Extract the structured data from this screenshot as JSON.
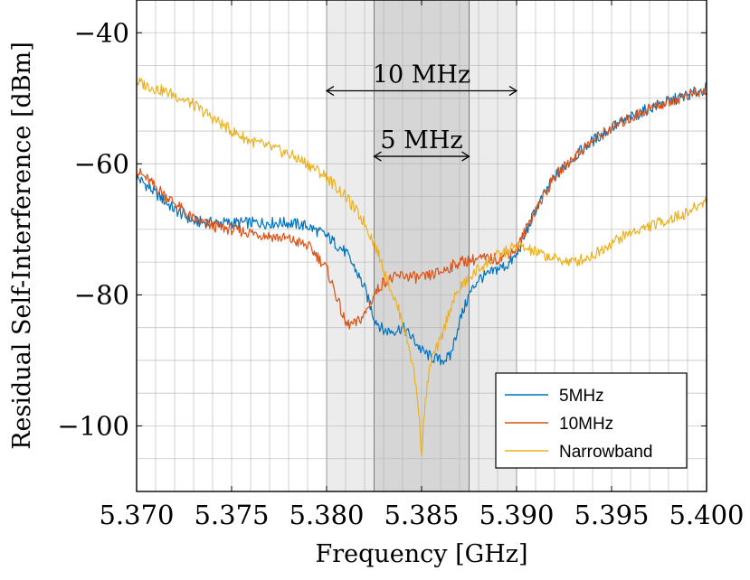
{
  "chart_data": {
    "type": "line",
    "xlabel": "Frequency [GHz]",
    "ylabel": "Residual Self-Interference [dBm]",
    "xlim": [
      5.37,
      5.4
    ],
    "ylim": [
      -110,
      -35
    ],
    "x_ticks": [
      5.37,
      5.375,
      5.38,
      5.385,
      5.39,
      5.395,
      5.4
    ],
    "x_tick_labels": [
      "5.370",
      "5.375",
      "5.380",
      "5.385",
      "5.390",
      "5.395",
      "5.400"
    ],
    "y_ticks": [
      -100,
      -80,
      -60,
      -40
    ],
    "y_tick_labels": [
      "−100",
      "−80",
      "−60",
      "−40"
    ],
    "grid": true,
    "legend_position": "bottom-right",
    "bands": [
      {
        "name": "10 MHz",
        "x0": 5.38,
        "x1": 5.39,
        "shade": "#ececec"
      },
      {
        "name": "5 MHz",
        "x0": 5.3825,
        "x1": 5.3875,
        "shade": "#d6d6d6"
      }
    ],
    "annotations": [
      {
        "label": "10 MHz",
        "x0": 5.38,
        "x1": 5.39,
        "y": -45
      },
      {
        "label": "5 MHz",
        "x0": 5.3825,
        "x1": 5.3875,
        "y": -55
      }
    ],
    "series": [
      {
        "name": "5MHz",
        "color": "#0072bd",
        "x": [
          5.37,
          5.371,
          5.372,
          5.373,
          5.374,
          5.375,
          5.376,
          5.377,
          5.378,
          5.379,
          5.38,
          5.381,
          5.3815,
          5.382,
          5.3825,
          5.383,
          5.3835,
          5.384,
          5.3845,
          5.385,
          5.3855,
          5.386,
          5.3865,
          5.387,
          5.3875,
          5.388,
          5.3885,
          5.389,
          5.3895,
          5.39,
          5.391,
          5.392,
          5.393,
          5.394,
          5.395,
          5.396,
          5.397,
          5.398,
          5.399,
          5.4
        ],
        "y": [
          -62,
          -64.5,
          -67,
          -68.8,
          -69,
          -69,
          -69,
          -69,
          -69,
          -69.5,
          -71,
          -73.5,
          -76,
          -79,
          -83.5,
          -85.5,
          -85.5,
          -85,
          -86.5,
          -88.5,
          -89.5,
          -90,
          -89.5,
          -84,
          -80,
          -77.5,
          -77,
          -76,
          -75.5,
          -74,
          -67,
          -62,
          -59,
          -56.5,
          -54.5,
          -53,
          -51.5,
          -50.5,
          -49.5,
          -48.5
        ]
      },
      {
        "name": "10MHz",
        "color": "#d95319",
        "x": [
          5.37,
          5.371,
          5.372,
          5.373,
          5.374,
          5.375,
          5.376,
          5.377,
          5.378,
          5.379,
          5.3795,
          5.38,
          5.3805,
          5.381,
          5.3815,
          5.382,
          5.3825,
          5.383,
          5.384,
          5.385,
          5.386,
          5.387,
          5.388,
          5.389,
          5.39,
          5.391,
          5.392,
          5.393,
          5.394,
          5.395,
          5.396,
          5.397,
          5.398,
          5.399,
          5.4
        ],
        "y": [
          -61,
          -63.5,
          -66,
          -68.5,
          -69.5,
          -70,
          -70.5,
          -71,
          -71.5,
          -72.5,
          -74,
          -76,
          -80,
          -84.5,
          -84.5,
          -83,
          -80,
          -78,
          -77,
          -77.5,
          -76.5,
          -75,
          -74.5,
          -74.5,
          -73,
          -67,
          -62,
          -59,
          -56.5,
          -54.5,
          -53,
          -51.5,
          -50.5,
          -49.5,
          -49
        ]
      },
      {
        "name": "Narrowband",
        "color": "#edb120",
        "x": [
          5.37,
          5.371,
          5.372,
          5.373,
          5.374,
          5.375,
          5.376,
          5.377,
          5.378,
          5.379,
          5.38,
          5.381,
          5.382,
          5.3825,
          5.383,
          5.3835,
          5.384,
          5.3845,
          5.3848,
          5.385,
          5.3852,
          5.3855,
          5.386,
          5.3865,
          5.387,
          5.388,
          5.389,
          5.39,
          5.391,
          5.392,
          5.393,
          5.394,
          5.395,
          5.396,
          5.397,
          5.398,
          5.399,
          5.4
        ],
        "y": [
          -47.5,
          -48.5,
          -49.5,
          -51,
          -53,
          -55,
          -56.5,
          -57.5,
          -58.5,
          -60,
          -62,
          -65,
          -69,
          -72,
          -76,
          -80,
          -84,
          -90,
          -96,
          -104,
          -96,
          -90,
          -87,
          -82,
          -79,
          -76,
          -74,
          -72.5,
          -73.5,
          -74.5,
          -75,
          -74,
          -72,
          -70.5,
          -69.5,
          -68.5,
          -67.5,
          -65.5
        ]
      }
    ]
  }
}
